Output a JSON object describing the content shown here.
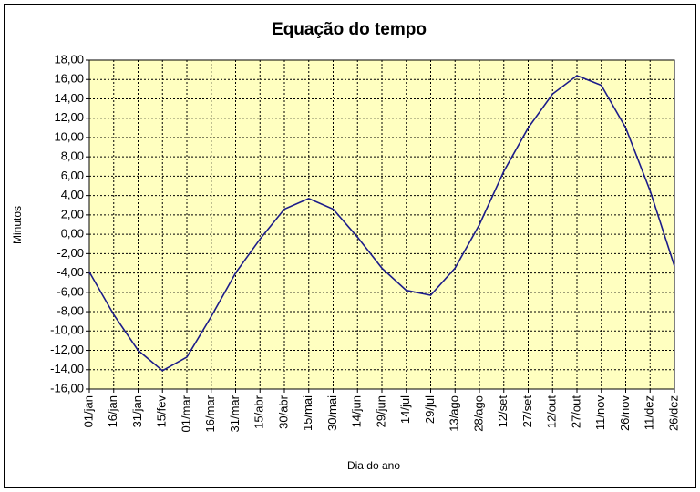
{
  "chart_data": {
    "type": "line",
    "title": "Equação do tempo",
    "x_label": "Dia do ano",
    "y_label": "Minutos",
    "categories": [
      "01/jan",
      "16/jan",
      "31/jan",
      "15/fev",
      "01/mar",
      "16/mar",
      "31/mar",
      "15/abr",
      "30/abr",
      "15/mai",
      "30/mai",
      "14/jun",
      "29/jun",
      "14/jul",
      "29/jul",
      "13/ago",
      "28/ago",
      "12/set",
      "27/set",
      "12/out",
      "27/out",
      "11/nov",
      "26/nov",
      "11/dez",
      "26/dez"
    ],
    "values": [
      -3.9,
      -8.3,
      -12,
      -14.1,
      -12.7,
      -8.5,
      -4,
      -0.5,
      2.6,
      3.7,
      2.6,
      -0.3,
      -3.5,
      -5.8,
      -6.3,
      -3.5,
      1,
      6.5,
      11,
      14.5,
      16.4,
      15.4,
      11,
      4.5,
      -3.3
    ],
    "color": "#1c1c8a",
    "ylim": [
      -16,
      18
    ],
    "yticks": [
      {
        "value": -16,
        "label": "-16,00"
      },
      {
        "value": -14,
        "label": "-14,00"
      },
      {
        "value": -12,
        "label": "-12,00"
      },
      {
        "value": -10,
        "label": "-10,00"
      },
      {
        "value": -8,
        "label": "-8,00"
      },
      {
        "value": -6,
        "label": "-6,00"
      },
      {
        "value": -4,
        "label": "-4,00"
      },
      {
        "value": -2,
        "label": "-2,00"
      },
      {
        "value": 0,
        "label": "0,00"
      },
      {
        "value": 2,
        "label": "2,00"
      },
      {
        "value": 4,
        "label": "4,00"
      },
      {
        "value": 6,
        "label": "6,00"
      },
      {
        "value": 8,
        "label": "8,00"
      },
      {
        "value": 10,
        "label": "10,00"
      },
      {
        "value": 12,
        "label": "12,00"
      },
      {
        "value": 14,
        "label": "14,00"
      },
      {
        "value": 16,
        "label": "16,00"
      },
      {
        "value": 18,
        "label": "18,00"
      }
    ],
    "grid": true
  }
}
